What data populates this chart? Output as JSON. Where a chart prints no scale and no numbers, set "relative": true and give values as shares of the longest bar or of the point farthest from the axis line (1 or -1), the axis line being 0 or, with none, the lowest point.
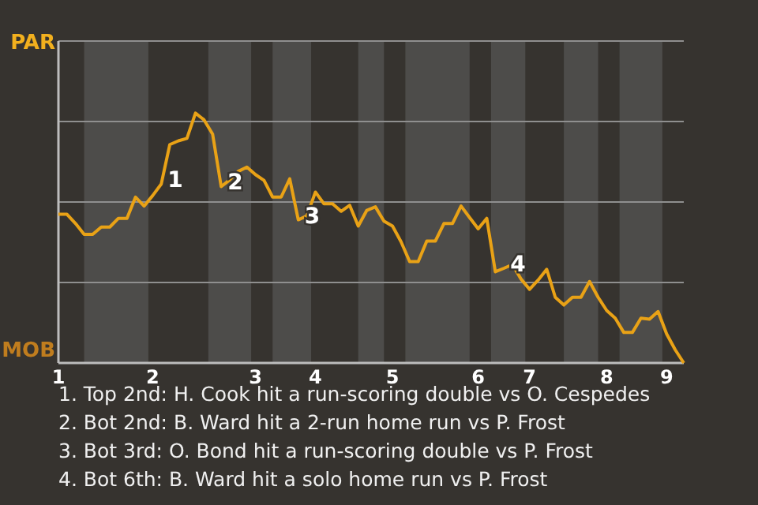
{
  "chart_data": {
    "type": "line",
    "relative": true,
    "categories": [
      "1",
      null,
      null,
      null,
      null,
      null,
      null,
      null,
      null,
      null,
      null,
      "2",
      null,
      null,
      null,
      null,
      null,
      null,
      null,
      null,
      null,
      null,
      null,
      "3",
      null,
      null,
      null,
      null,
      null,
      null,
      "4",
      null,
      null,
      null,
      null,
      null,
      null,
      null,
      null,
      "5",
      null,
      null,
      null,
      null,
      null,
      null,
      null,
      null,
      null,
      "6",
      null,
      null,
      null,
      null,
      null,
      "7",
      null,
      null,
      null,
      null,
      null,
      null,
      null,
      null,
      "8",
      null,
      null,
      null,
      null,
      null,
      null,
      "9",
      null,
      null
    ],
    "grid": true,
    "marker": "none",
    "line_style": "solid",
    "series": [
      {
        "color": "#e9a216",
        "values": [
          0.595,
          0.595,
          0.558,
          0.515,
          0.515,
          0.544,
          0.544,
          0.579,
          0.579,
          0.664,
          0.628,
          0.67,
          0.716,
          0.874,
          0.889,
          0.899,
          1,
          0.973,
          0.916,
          0.706,
          0.733,
          0.767,
          0.784,
          0.754,
          0.731,
          0.664,
          0.664,
          0.737,
          0.573,
          0.589,
          0.684,
          0.637,
          0.637,
          0.607,
          0.631,
          0.548,
          0.611,
          0.625,
          0.568,
          0.548,
          0.485,
          0.406,
          0.406,
          0.488,
          0.488,
          0.558,
          0.558,
          0.628,
          0.582,
          0.537,
          0.579,
          0.365,
          0.379,
          0.394,
          0.336,
          0.295,
          0.332,
          0.375,
          0.263,
          0.232,
          0.263,
          0.263,
          0.326,
          0.263,
          0.21,
          0.179,
          0.122,
          0.122,
          0.179,
          0.175,
          0.206,
          0.116,
          0.053,
          0
        ]
      }
    ],
    "annotations": [
      "PAR",
      "MOB",
      "1",
      "2",
      "3",
      "4",
      "1. Top 2nd: H. Cook hit a run-scoring double vs O. Cespedes",
      "2. Bot 2nd: B. Ward hit a 2-run home run vs P. Frost",
      "3. Bot 3rd: O. Bond hit a run-scoring double vs P. Frost",
      "4. Bot 6th: B. Ward hit a solo home run vs P. Frost"
    ]
  }
}
